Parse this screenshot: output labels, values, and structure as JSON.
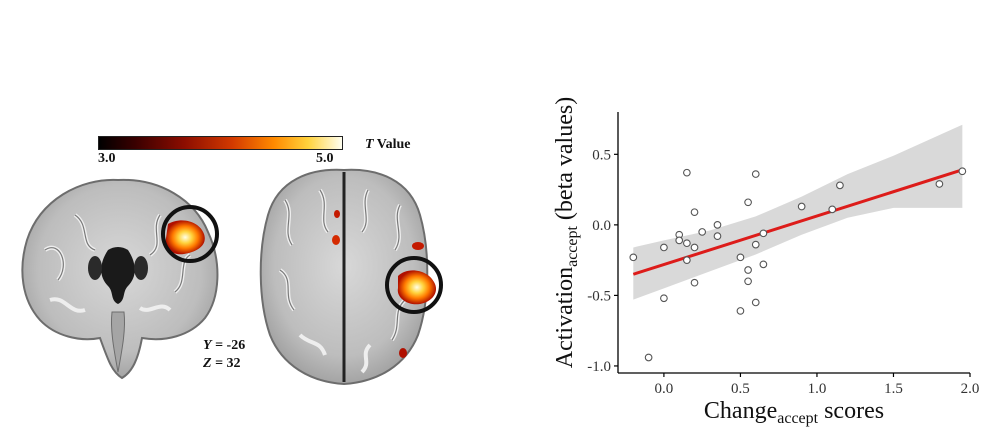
{
  "brain_panel": {
    "colorbar": {
      "min_label": "3.0",
      "max_label": "5.0",
      "title_italic": "T",
      "title_rest": " Value"
    },
    "coronal": {
      "coord_axis": "Y",
      "coord_value": " = -26"
    },
    "axial": {
      "coord_axis": "Z",
      "coord_value": " = 32"
    }
  },
  "chart_data": {
    "type": "scatter",
    "xlabel": {
      "base": "Change",
      "sub": "accept",
      "suffix": " scores"
    },
    "ylabel": {
      "base": "Activation",
      "sub": "accept",
      "suffix": " (beta values)"
    },
    "xlim": [
      -0.3,
      2.0
    ],
    "ylim": [
      -1.05,
      0.8
    ],
    "xticks": [
      0.0,
      0.5,
      1.0,
      1.5,
      2.0
    ],
    "xtick_labels": [
      "0.0",
      "0.5",
      "1.0",
      "1.5",
      "2.0"
    ],
    "yticks": [
      -1.0,
      -0.5,
      0.0,
      0.5
    ],
    "ytick_labels": [
      "-1.0",
      "-0.5",
      "0.0",
      "0.5"
    ],
    "grid": false,
    "points": [
      {
        "x": -0.2,
        "y": -0.23
      },
      {
        "x": -0.1,
        "y": -0.94
      },
      {
        "x": 0.0,
        "y": -0.16
      },
      {
        "x": 0.0,
        "y": -0.52
      },
      {
        "x": 0.1,
        "y": -0.07
      },
      {
        "x": 0.1,
        "y": -0.11
      },
      {
        "x": 0.15,
        "y": -0.13
      },
      {
        "x": 0.15,
        "y": -0.25
      },
      {
        "x": 0.15,
        "y": 0.37
      },
      {
        "x": 0.2,
        "y": 0.09
      },
      {
        "x": 0.2,
        "y": -0.16
      },
      {
        "x": 0.2,
        "y": -0.41
      },
      {
        "x": 0.25,
        "y": -0.05
      },
      {
        "x": 0.35,
        "y": 0.0
      },
      {
        "x": 0.35,
        "y": -0.08
      },
      {
        "x": 0.5,
        "y": -0.23
      },
      {
        "x": 0.5,
        "y": -0.61
      },
      {
        "x": 0.55,
        "y": 0.16
      },
      {
        "x": 0.55,
        "y": -0.32
      },
      {
        "x": 0.55,
        "y": -0.4
      },
      {
        "x": 0.6,
        "y": 0.36
      },
      {
        "x": 0.6,
        "y": -0.14
      },
      {
        "x": 0.6,
        "y": -0.55
      },
      {
        "x": 0.65,
        "y": -0.06
      },
      {
        "x": 0.65,
        "y": -0.28
      },
      {
        "x": 0.9,
        "y": 0.13
      },
      {
        "x": 1.1,
        "y": 0.11
      },
      {
        "x": 1.15,
        "y": 0.28
      },
      {
        "x": 1.8,
        "y": 0.29
      },
      {
        "x": 1.95,
        "y": 0.38
      }
    ],
    "fit_line": {
      "x": [
        -0.2,
        1.95
      ],
      "y": [
        -0.35,
        0.39
      ],
      "color": "#dd1c1a"
    },
    "confidence_band": {
      "x": [
        -0.2,
        0.0,
        0.3,
        0.6,
        0.9,
        1.2,
        1.5,
        1.95
      ],
      "upper": [
        -0.16,
        -0.11,
        -0.04,
        0.06,
        0.2,
        0.36,
        0.49,
        0.71
      ],
      "lower": [
        -0.53,
        -0.45,
        -0.33,
        -0.21,
        -0.07,
        0.05,
        0.12,
        0.12
      ],
      "color": "#d9d9d9"
    },
    "point_color": "#555555",
    "axis_color": "#000000"
  }
}
